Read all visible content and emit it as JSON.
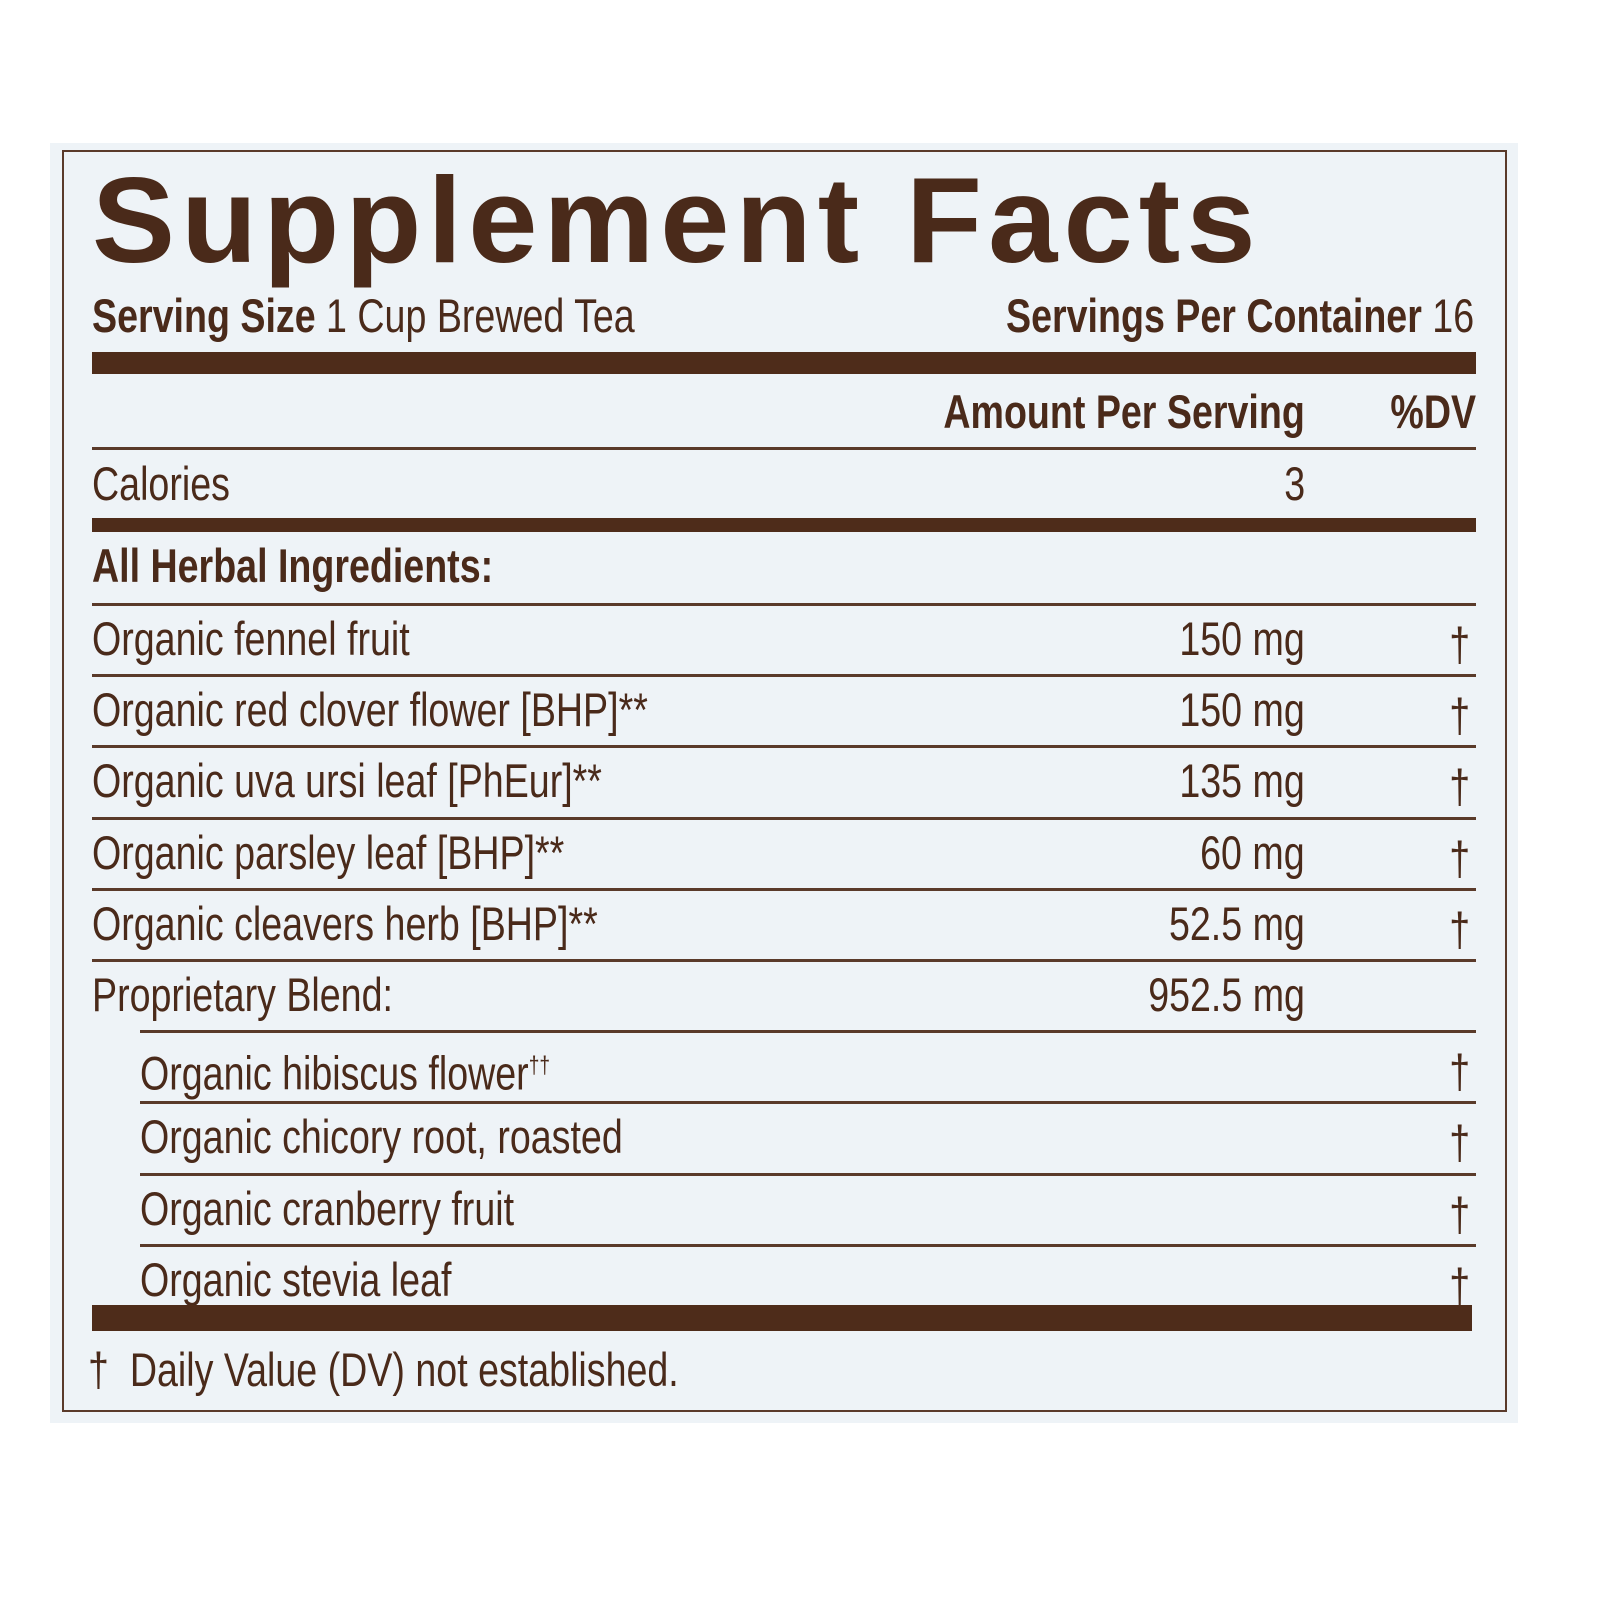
{
  "title": "Supplement Facts",
  "serving_size": {
    "label": "Serving Size",
    "value": "1 Cup Brewed Tea"
  },
  "servings_per_container": {
    "label": "Servings Per Container",
    "value": "16"
  },
  "columns": {
    "amount": "Amount Per Serving",
    "dv": "%DV"
  },
  "calories": {
    "label": "Calories",
    "amount": "3"
  },
  "section_heading": "All Herbal Ingredients:",
  "ingredients": [
    {
      "name": "Organic fennel fruit",
      "amount": "150 mg",
      "dv": "†"
    },
    {
      "name": "Organic red clover flower [BHP]**",
      "amount": "150 mg",
      "dv": "†"
    },
    {
      "name": "Organic uva ursi leaf [PhEur]**",
      "amount": "135 mg",
      "dv": "†"
    },
    {
      "name": "Organic parsley leaf [BHP]**",
      "amount": "60 mg",
      "dv": "†"
    },
    {
      "name": "Organic cleavers herb [BHP]**",
      "amount": "52.5 mg",
      "dv": "†"
    }
  ],
  "blend": {
    "name": "Proprietary Blend:",
    "amount": "952.5 mg"
  },
  "blend_items": [
    {
      "name": "Organic hibiscus flower",
      "sup": "††",
      "dv": "†"
    },
    {
      "name": "Organic chicory root, roasted",
      "sup": "",
      "dv": "†"
    },
    {
      "name": "Organic cranberry fruit",
      "sup": "",
      "dv": "†"
    },
    {
      "name": "Organic stevia leaf",
      "sup": "",
      "dv": "†"
    }
  ],
  "footnote": {
    "symbol": "†",
    "text": "Daily Value (DV) not established."
  },
  "colors": {
    "ink": "#4a2a1a",
    "background": "#eef3f7"
  }
}
